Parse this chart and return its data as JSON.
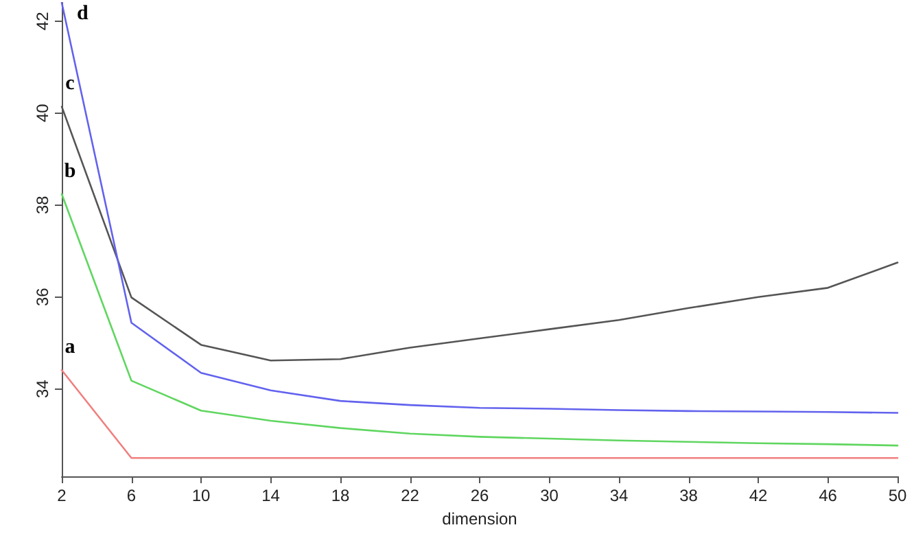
{
  "chart_data": {
    "type": "line",
    "xlabel": "dimension",
    "x": [
      2,
      6,
      10,
      14,
      18,
      22,
      26,
      30,
      34,
      38,
      42,
      46,
      50
    ],
    "series": [
      {
        "name": "a",
        "color": "#f07f7f",
        "values": [
          34.41,
          32.5,
          32.5,
          32.5,
          32.5,
          32.5,
          32.5,
          32.5,
          32.5,
          32.5,
          32.5,
          32.5,
          32.5
        ]
      },
      {
        "name": "b",
        "color": "#5fd65f",
        "values": [
          38.24,
          34.18,
          33.53,
          33.31,
          33.15,
          33.03,
          32.96,
          32.92,
          32.88,
          32.85,
          32.82,
          32.8,
          32.77
        ]
      },
      {
        "name": "c",
        "color": "#555555",
        "values": [
          40.14,
          35.99,
          34.96,
          34.62,
          34.65,
          34.9,
          35.1,
          35.3,
          35.5,
          35.76,
          36.0,
          36.2,
          36.75
        ]
      },
      {
        "name": "d",
        "color": "#6262ee",
        "values": [
          42.4,
          35.44,
          34.35,
          33.97,
          33.74,
          33.65,
          33.59,
          33.57,
          33.54,
          33.52,
          33.51,
          33.5,
          33.48
        ]
      }
    ],
    "xlim": [
      2,
      50
    ],
    "xticks": [
      2,
      6,
      10,
      14,
      18,
      22,
      26,
      30,
      34,
      38,
      42,
      46,
      50
    ],
    "ylim": [
      32.1,
      42.4
    ],
    "yticks": [
      34,
      36,
      38,
      40,
      42
    ],
    "grid": false,
    "legend": false,
    "marker": "none",
    "line_style": "solid"
  }
}
